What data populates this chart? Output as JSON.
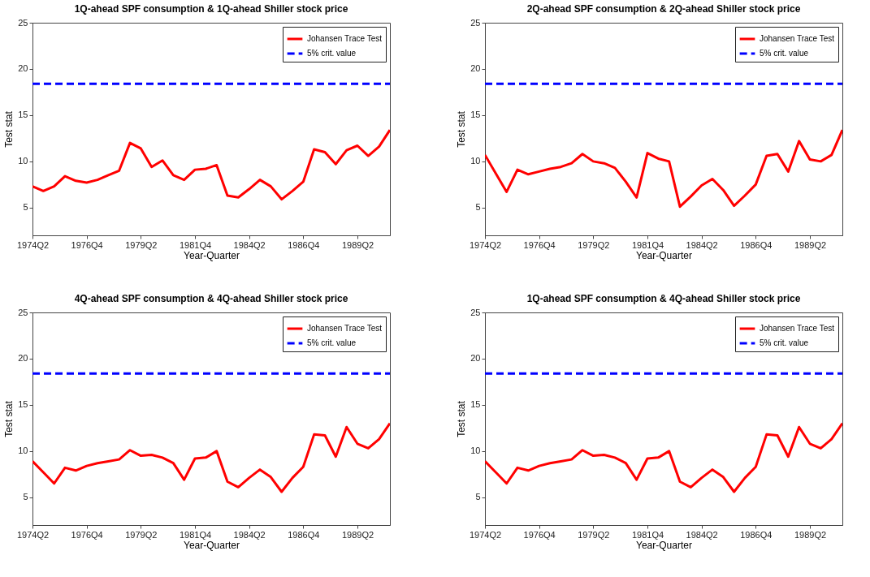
{
  "chart_data": [
    {
      "type": "line",
      "title": "1Q-ahead SPF consumption & 1Q-ahead Shiller stock price",
      "xlabel": "Year-Quarter",
      "ylabel": "Test stat",
      "categories": [
        "1974Q2",
        null,
        null,
        null,
        null,
        "1976Q4",
        null,
        null,
        null,
        null,
        "1979Q2",
        null,
        null,
        null,
        null,
        "1981Q4",
        null,
        null,
        null,
        null,
        "1984Q2",
        null,
        null,
        null,
        null,
        "1986Q4",
        null,
        null,
        null,
        null,
        "1989Q2",
        null,
        null,
        null
      ],
      "series": [
        {
          "name": "Johansen Trace Test",
          "color": "#ff0000",
          "line_style": "solid",
          "values": [
            7.3,
            6.8,
            7.3,
            8.4,
            7.9,
            7.7,
            8.0,
            8.5,
            9.0,
            12.0,
            11.4,
            9.4,
            10.1,
            8.5,
            8.0,
            9.1,
            9.2,
            9.6,
            6.3,
            6.1,
            7.0,
            8.0,
            7.3,
            5.9,
            6.8,
            7.8,
            11.3,
            11.0,
            9.7,
            11.2,
            11.7,
            10.6,
            11.6,
            13.4
          ]
        },
        {
          "name": "5% crit. value",
          "color": "#0000ff",
          "line_style": "dashed",
          "values": [
            18.4,
            18.4,
            18.4,
            18.4,
            18.4,
            18.4,
            18.4,
            18.4,
            18.4,
            18.4,
            18.4,
            18.4,
            18.4,
            18.4,
            18.4,
            18.4,
            18.4,
            18.4,
            18.4,
            18.4,
            18.4,
            18.4,
            18.4,
            18.4,
            18.4,
            18.4,
            18.4,
            18.4,
            18.4,
            18.4,
            18.4,
            18.4,
            18.4,
            18.4
          ]
        }
      ],
      "ylim": [
        2,
        25
      ],
      "yticks": [
        5,
        10,
        15,
        20,
        25
      ],
      "grid": false,
      "legend": "top right"
    },
    {
      "type": "line",
      "title": "2Q-ahead SPF consumption & 2Q-ahead Shiller stock price",
      "xlabel": "Year-Quarter",
      "ylabel": "Test stat",
      "categories": [
        "1974Q2",
        null,
        null,
        null,
        null,
        "1976Q4",
        null,
        null,
        null,
        null,
        "1979Q2",
        null,
        null,
        null,
        null,
        "1981Q4",
        null,
        null,
        null,
        null,
        "1984Q2",
        null,
        null,
        null,
        null,
        "1986Q4",
        null,
        null,
        null,
        null,
        "1989Q2",
        null,
        null,
        null
      ],
      "series": [
        {
          "name": "Johansen Trace Test",
          "color": "#ff0000",
          "line_style": "solid",
          "values": [
            10.7,
            8.7,
            6.7,
            9.1,
            8.6,
            8.9,
            9.2,
            9.4,
            9.8,
            10.8,
            10.0,
            9.8,
            9.3,
            7.8,
            6.1,
            10.9,
            10.3,
            10.0,
            5.1,
            6.2,
            7.4,
            8.1,
            6.9,
            5.2,
            6.3,
            7.5,
            10.6,
            10.8,
            8.9,
            12.2,
            10.2,
            10.0,
            10.7,
            13.4
          ]
        },
        {
          "name": "5% crit. value",
          "color": "#0000ff",
          "line_style": "dashed",
          "values": [
            18.4,
            18.4,
            18.4,
            18.4,
            18.4,
            18.4,
            18.4,
            18.4,
            18.4,
            18.4,
            18.4,
            18.4,
            18.4,
            18.4,
            18.4,
            18.4,
            18.4,
            18.4,
            18.4,
            18.4,
            18.4,
            18.4,
            18.4,
            18.4,
            18.4,
            18.4,
            18.4,
            18.4,
            18.4,
            18.4,
            18.4,
            18.4,
            18.4,
            18.4
          ]
        }
      ],
      "ylim": [
        2,
        25
      ],
      "yticks": [
        5,
        10,
        15,
        20,
        25
      ],
      "grid": false,
      "legend": "top right"
    },
    {
      "type": "line",
      "title": "4Q-ahead SPF consumption & 4Q-ahead Shiller stock price",
      "xlabel": "Year-Quarter",
      "ylabel": "Test stat",
      "categories": [
        "1974Q2",
        null,
        null,
        null,
        null,
        "1976Q4",
        null,
        null,
        null,
        null,
        "1979Q2",
        null,
        null,
        null,
        null,
        "1981Q4",
        null,
        null,
        null,
        null,
        "1984Q2",
        null,
        null,
        null,
        null,
        "1986Q4",
        null,
        null,
        null,
        null,
        "1989Q2",
        null,
        null,
        null
      ],
      "series": [
        {
          "name": "Johansen Trace Test",
          "color": "#ff0000",
          "line_style": "solid",
          "values": [
            8.9,
            7.7,
            6.5,
            8.2,
            7.9,
            8.4,
            8.7,
            8.9,
            9.1,
            10.1,
            9.5,
            9.6,
            9.3,
            8.7,
            6.9,
            9.2,
            9.3,
            10.0,
            6.7,
            6.1,
            7.1,
            8.0,
            7.2,
            5.6,
            7.1,
            8.3,
            11.8,
            11.7,
            9.4,
            12.6,
            10.8,
            10.3,
            11.3,
            13.0
          ]
        },
        {
          "name": "5% crit. value",
          "color": "#0000ff",
          "line_style": "dashed",
          "values": [
            18.4,
            18.4,
            18.4,
            18.4,
            18.4,
            18.4,
            18.4,
            18.4,
            18.4,
            18.4,
            18.4,
            18.4,
            18.4,
            18.4,
            18.4,
            18.4,
            18.4,
            18.4,
            18.4,
            18.4,
            18.4,
            18.4,
            18.4,
            18.4,
            18.4,
            18.4,
            18.4,
            18.4,
            18.4,
            18.4,
            18.4,
            18.4,
            18.4,
            18.4
          ]
        }
      ],
      "ylim": [
        2,
        25
      ],
      "yticks": [
        5,
        10,
        15,
        20,
        25
      ],
      "grid": false,
      "legend": "top right"
    },
    {
      "type": "line",
      "title": "1Q-ahead SPF consumption & 4Q-ahead Shiller stock price",
      "xlabel": "Year-Quarter",
      "ylabel": "Test stat",
      "categories": [
        "1974Q2",
        null,
        null,
        null,
        null,
        "1976Q4",
        null,
        null,
        null,
        null,
        "1979Q2",
        null,
        null,
        null,
        null,
        "1981Q4",
        null,
        null,
        null,
        null,
        "1984Q2",
        null,
        null,
        null,
        null,
        "1986Q4",
        null,
        null,
        null,
        null,
        "1989Q2",
        null,
        null,
        null
      ],
      "series": [
        {
          "name": "Johansen Trace Test",
          "color": "#ff0000",
          "line_style": "solid",
          "values": [
            8.9,
            7.7,
            6.5,
            8.2,
            7.9,
            8.4,
            8.7,
            8.9,
            9.1,
            10.1,
            9.5,
            9.6,
            9.3,
            8.7,
            6.9,
            9.2,
            9.3,
            10.0,
            6.7,
            6.1,
            7.1,
            8.0,
            7.2,
            5.6,
            7.1,
            8.3,
            11.8,
            11.7,
            9.4,
            12.6,
            10.8,
            10.3,
            11.3,
            13.0
          ]
        },
        {
          "name": "5% crit. value",
          "color": "#0000ff",
          "line_style": "dashed",
          "values": [
            18.4,
            18.4,
            18.4,
            18.4,
            18.4,
            18.4,
            18.4,
            18.4,
            18.4,
            18.4,
            18.4,
            18.4,
            18.4,
            18.4,
            18.4,
            18.4,
            18.4,
            18.4,
            18.4,
            18.4,
            18.4,
            18.4,
            18.4,
            18.4,
            18.4,
            18.4,
            18.4,
            18.4,
            18.4,
            18.4,
            18.4,
            18.4,
            18.4,
            18.4
          ]
        }
      ],
      "ylim": [
        2,
        25
      ],
      "yticks": [
        5,
        10,
        15,
        20,
        25
      ],
      "grid": false,
      "legend": "top right"
    }
  ]
}
